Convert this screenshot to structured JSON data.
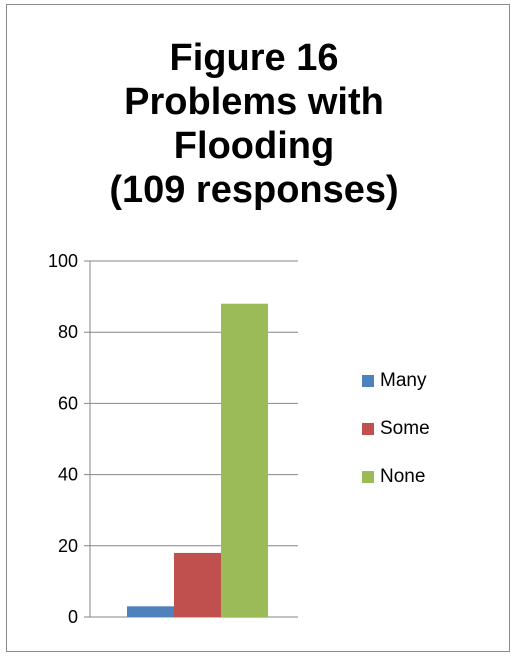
{
  "chart_data": {
    "type": "bar",
    "title_lines": [
      "Figure 16",
      "Problems with",
      "Flooding",
      "(109 responses)"
    ],
    "series": [
      {
        "name": "Many",
        "values": [
          3
        ],
        "color": "#4f81bd"
      },
      {
        "name": "Some",
        "values": [
          18
        ],
        "color": "#c0504d"
      },
      {
        "name": "None",
        "values": [
          88
        ],
        "color": "#9bbb59"
      }
    ],
    "ylim": [
      0,
      100
    ],
    "yticks": [
      "0",
      "20",
      "40",
      "60",
      "80",
      "100"
    ],
    "grid": true,
    "legend_position": "right"
  }
}
